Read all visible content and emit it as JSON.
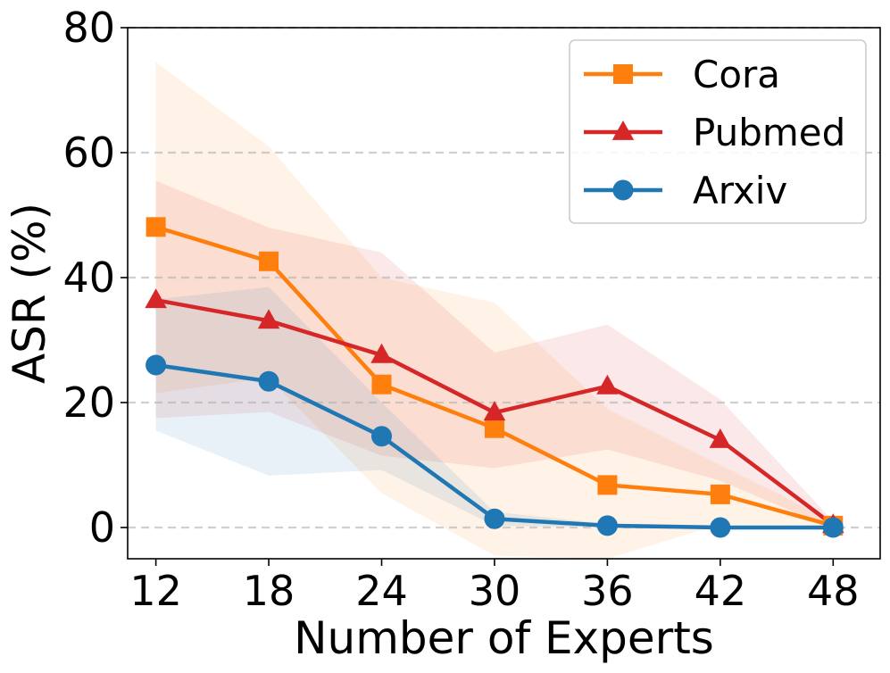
{
  "chart_data": {
    "type": "line",
    "xlabel": "Number of Experts",
    "ylabel": "ASR (%)",
    "x": [
      12,
      18,
      24,
      30,
      36,
      42,
      48
    ],
    "x_tick_labels": [
      "12",
      "18",
      "24",
      "30",
      "36",
      "42",
      "48"
    ],
    "y_ticks": [
      0,
      20,
      40,
      60,
      80
    ],
    "y_tick_labels": [
      "0",
      "20",
      "40",
      "60",
      "80"
    ],
    "xlim": [
      10.5,
      50.5
    ],
    "ylim": [
      -5,
      80
    ],
    "grid": "horizontal-dashed",
    "legend_position": "top-right",
    "series": [
      {
        "name": "Cora",
        "color": "#ff7f0e",
        "marker": "square",
        "values": [
          48.1,
          42.6,
          22.9,
          15.9,
          6.8,
          5.3,
          0.3
        ],
        "upper": [
          74.5,
          61.0,
          40.0,
          36.0,
          19.0,
          10.0,
          1.0
        ],
        "lower": [
          21.5,
          24.0,
          5.5,
          -4.5,
          -5.0,
          0.5,
          -0.5
        ]
      },
      {
        "name": "Pubmed",
        "color": "#d62728",
        "marker": "triangle",
        "values": [
          36.4,
          33.1,
          27.6,
          18.4,
          22.6,
          14.0,
          0.4
        ],
        "upper": [
          55.5,
          48.0,
          44.0,
          28.0,
          32.5,
          20.5,
          1.0
        ],
        "lower": [
          17.5,
          18.5,
          11.5,
          9.5,
          12.5,
          7.5,
          -0.2
        ]
      },
      {
        "name": "Arxiv",
        "color": "#1f77b4",
        "marker": "circle",
        "values": [
          26.0,
          23.4,
          14.6,
          1.4,
          0.3,
          0.0,
          0.0
        ],
        "upper": [
          36.5,
          38.5,
          20.0,
          2.5,
          0.6,
          0.1,
          0.1
        ],
        "lower": [
          15.5,
          8.3,
          9.2,
          0.3,
          0.0,
          0.0,
          0.0
        ]
      }
    ]
  }
}
